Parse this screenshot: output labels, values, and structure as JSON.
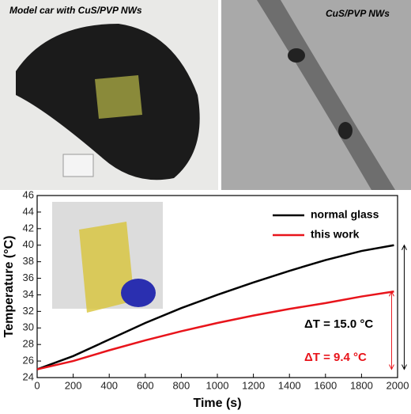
{
  "photos": {
    "left_label": "Model car with CuS/PVP NWs",
    "right_label": "CuS/PVP NWs"
  },
  "chart_data": {
    "type": "line",
    "x": [
      0,
      200,
      400,
      600,
      800,
      1000,
      1200,
      1400,
      1600,
      1800,
      1980
    ],
    "series": [
      {
        "name": "normal glass",
        "color": "#000000",
        "values": [
          25,
          26.6,
          28.6,
          30.6,
          32.4,
          34,
          35.5,
          36.9,
          38.2,
          39.3,
          40
        ]
      },
      {
        "name": "this work",
        "color": "#e8141b",
        "values": [
          25,
          26,
          27.3,
          28.5,
          29.6,
          30.6,
          31.5,
          32.3,
          33,
          33.8,
          34.4
        ]
      }
    ],
    "xlim": [
      0,
      2000
    ],
    "xticks": [
      0,
      200,
      400,
      600,
      800,
      1000,
      1200,
      1400,
      1600,
      1800,
      2000
    ],
    "ylim": [
      24,
      46
    ],
    "yticks": [
      24,
      26,
      28,
      30,
      32,
      34,
      36,
      38,
      40,
      42,
      44,
      46
    ],
    "xlabel": "Time (s)",
    "ylabel": "Temperature (°C)",
    "legend": "upper right",
    "annotations": [
      {
        "text": "ΔT = 15.0 °C",
        "color": "#000000"
      },
      {
        "text": "ΔT = 9.4 °C",
        "color": "#e8141b"
      }
    ]
  }
}
